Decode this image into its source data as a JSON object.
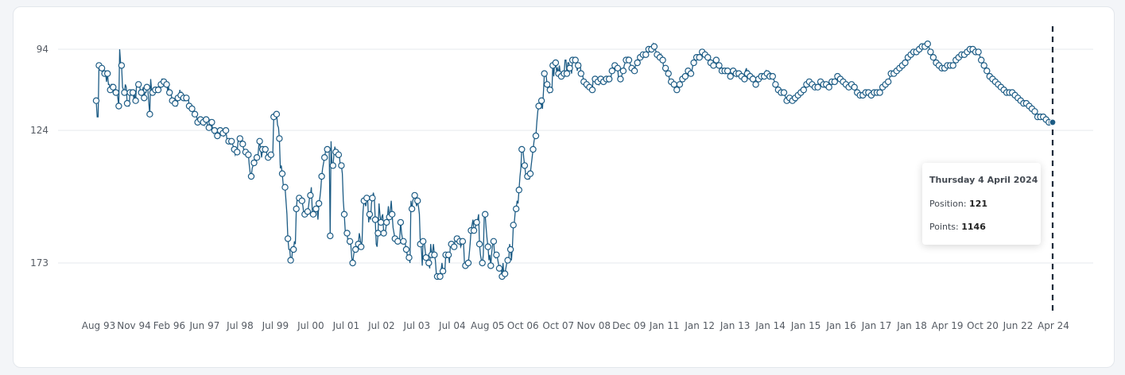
{
  "chart_data": {
    "type": "line",
    "x_labels": [
      "Aug 93",
      "Nov 94",
      "Feb 96",
      "Jun 97",
      "Jul 98",
      "Jul 99",
      "Jul 00",
      "Jul 01",
      "Jul 02",
      "Jul 03",
      "Jul 04",
      "Aug 05",
      "Oct 06",
      "Oct 07",
      "Nov 08",
      "Dec 09",
      "Jan 11",
      "Jan 12",
      "Jan 13",
      "Jan 14",
      "Jan 15",
      "Jan 16",
      "Jan 17",
      "Jan 18",
      "Apr 19",
      "Oct 20",
      "Jun 22",
      "Apr 24"
    ],
    "y_ticks": [
      94,
      124,
      173
    ],
    "y_axis": "reversed",
    "ylim": [
      84,
      190
    ],
    "grid": true,
    "series": [
      {
        "values": [
          113,
          119,
          119,
          100,
          100,
          100,
          101,
          102,
          102,
          103,
          103,
          106,
          103,
          107,
          107,
          109,
          107,
          107,
          108,
          108,
          108,
          110,
          109,
          112,
          115,
          94,
          99,
          100,
          108,
          109,
          110,
          107,
          108,
          114,
          115,
          115,
          110,
          111,
          111,
          110,
          112,
          111,
          113,
          107,
          107,
          107,
          106,
          110,
          110,
          110,
          108,
          112,
          110,
          110,
          108,
          109,
          114,
          118,
          105,
          109,
          110,
          110,
          110,
          109,
          109,
          109,
          109,
          109,
          109,
          107,
          105,
          105,
          106,
          106,
          107,
          107,
          109,
          108,
          110,
          111,
          111,
          113,
          114,
          114,
          114,
          115,
          115,
          112,
          113,
          109,
          111,
          110,
          111,
          112,
          113,
          113,
          112,
          112,
          112,
          115,
          116,
          115,
          116,
          117,
          117,
          118,
          118,
          119,
          121,
          120,
          120,
          120,
          119,
          122,
          121,
          122,
          120,
          120,
          121,
          123,
          123,
          120,
          121,
          121,
          124,
          125,
          124,
          125,
          125,
          126,
          126,
          126,
          124,
          125,
          125,
          125,
          126,
          125,
          124,
          127,
          127,
          128,
          128,
          129,
          128,
          129,
          130,
          131,
          133,
          132,
          132,
          128,
          128,
          127,
          128,
          129,
          129,
          131,
          131,
          132,
          132,
          132,
          133,
          137,
          140,
          141,
          138,
          137,
          136,
          136,
          136,
          134,
          134,
          130,
          128,
          131,
          134,
          131,
          132,
          132,
          131,
          131,
          134,
          134,
          133,
          133,
          133,
          133,
          132,
          119,
          119,
          119,
          118,
          122,
          123,
          127,
          138,
          137,
          140,
          144,
          145,
          145,
          150,
          155,
          164,
          168,
          168,
          172,
          172,
          168,
          168,
          165,
          166,
          153,
          149,
          149,
          149,
          149,
          150,
          150,
          152,
          155,
          155,
          154,
          154,
          154,
          152,
          149,
          148,
          145,
          154,
          155,
          153,
          154,
          153,
          153,
          157,
          151,
          149,
          146,
          141,
          138,
          136,
          134,
          132,
          132,
          131,
          131,
          132,
          163,
          128,
          137,
          137,
          133,
          130,
          132,
          133,
          133,
          133,
          134,
          138,
          137,
          140,
          150,
          155,
          161,
          163,
          162,
          165,
          166,
          165,
          166,
          171,
          173,
          170,
          168,
          168,
          168,
          168,
          166,
          162,
          164,
          167,
          165,
          154,
          150,
          151,
          152,
          149,
          150,
          158,
          155,
          157,
          151,
          149,
          147,
          149,
          157,
          166,
          167,
          162,
          151,
          155,
          158,
          156,
          155,
          162,
          161,
          161,
          158,
          156,
          152,
          156,
          154,
          150,
          155,
          160,
          162,
          164,
          165,
          164,
          165,
          164,
          164,
          158,
          162,
          164,
          165,
          165,
          166,
          168,
          170,
          171,
          171,
          173,
          150,
          153,
          150,
          149,
          148,
          150,
          152,
          150,
          152,
          155,
          166,
          167,
          174,
          165,
          164,
          168,
          171,
          172,
          173,
          173,
          175,
          166,
          170,
          169,
          166,
          170,
          172,
          177,
          178,
          178,
          178,
          178,
          176,
          173,
          176,
          176,
          177,
          170,
          171,
          171,
          170,
          173,
          166,
          166,
          166,
          168,
          167,
          164,
          165,
          164,
          166,
          163,
          165,
          167,
          166,
          165,
          166,
          173,
          174,
          174,
          174,
          173,
          170,
          166,
          161,
          159,
          157,
          161,
          161,
          159,
          158,
          157,
          155,
          166,
          170,
          172,
          173,
          170,
          155,
          155,
          160,
          164,
          167,
          172,
          170,
          174,
          169,
          166,
          165,
          170,
          171,
          170,
          171,
          173,
          175,
          174,
          175,
          178,
          173,
          178,
          177,
          175,
          173,
          172,
          173,
          166,
          168,
          172,
          167,
          159,
          158,
          154,
          153,
          150,
          151,
          146,
          141,
          138,
          131,
          130,
          134,
          137,
          140,
          141,
          141,
          142,
          142,
          140,
          137,
          134,
          131,
          128,
          126,
          126,
          121,
          117,
          115,
          114,
          116,
          113,
          116,
          110,
          103,
          104,
          104,
          107,
          109,
          110,
          109,
          109,
          110,
          100,
          104,
          99,
          99,
          102,
          101,
          103,
          100,
          103,
          104,
          104,
          103,
          103,
          98,
          98,
          103,
          99,
          99,
          101,
          101,
          103,
          98,
          98,
          98,
          98,
          98,
          102,
          100,
          100,
          99,
          103,
          103,
          104,
          106,
          107,
          108,
          107,
          107,
          108,
          108,
          108,
          108,
          109,
          105,
          105,
          105,
          105,
          106,
          106,
          107,
          106,
          105,
          105,
          105,
          106,
          106,
          105,
          105,
          105,
          106,
          105,
          104,
          104,
          102,
          101,
          100,
          100,
          101,
          101,
          101,
          105,
          105,
          105,
          104,
          103,
          102,
          100,
          99,
          98,
          98,
          97,
          98,
          99,
          100,
          101,
          101,
          102,
          102,
          100,
          99,
          99,
          98,
          98,
          97,
          96,
          96,
          96,
          96,
          96,
          96,
          95,
          94,
          94,
          94,
          94,
          94,
          93,
          92,
          93,
          94,
          95,
          96,
          97,
          96,
          97,
          96,
          98,
          98,
          101,
          102,
          101,
          101,
          103,
          103,
          105,
          106,
          106,
          107,
          107,
          107,
          109,
          109,
          109,
          108,
          107,
          107,
          107,
          106,
          105,
          104,
          104,
          104,
          103,
          102,
          102,
          102,
          102,
          103,
          102,
          100,
          99,
          98,
          98,
          97,
          96,
          96,
          97,
          97,
          96,
          95,
          96,
          96,
          96,
          96,
          96,
          97,
          98,
          99,
          99,
          100,
          99,
          100,
          100,
          98,
          98,
          99,
          100,
          100,
          101,
          101,
          102,
          102,
          102,
          102,
          103,
          103,
          102,
          103,
          104,
          104,
          104,
          104,
          102,
          102,
          102,
          103,
          104,
          103,
          103,
          103,
          103,
          104,
          105,
          105,
          105,
          102,
          101,
          103,
          102,
          103,
          104,
          104,
          104,
          105,
          104,
          105,
          107,
          106,
          106,
          105,
          103,
          104,
          104,
          104,
          104,
          104,
          103,
          102,
          103,
          103,
          103,
          104,
          103,
          104,
          104,
          105,
          106,
          107,
          108,
          108,
          109,
          109,
          110,
          110,
          110,
          110,
          110,
          111,
          112,
          113,
          113,
          112,
          112,
          113,
          113,
          113,
          113,
          113,
          112,
          113,
          112,
          111,
          110,
          110,
          110,
          109,
          109,
          109,
          109,
          108,
          107,
          107,
          106,
          106,
          106,
          107,
          107,
          108,
          108,
          108,
          108,
          108,
          108,
          108,
          107,
          106,
          107,
          106,
          107,
          107,
          108,
          107,
          107,
          107,
          108,
          107,
          106,
          106,
          106,
          106,
          106,
          105,
          104,
          104,
          104,
          105,
          105,
          105,
          106,
          106,
          107,
          107,
          107,
          108,
          108,
          108,
          108,
          108,
          107,
          107,
          107,
          108,
          109,
          109,
          110,
          110,
          111,
          111,
          111,
          111,
          111,
          111,
          110,
          110,
          110,
          110,
          110,
          110,
          110,
          111,
          111,
          111,
          110,
          110,
          110,
          110,
          111,
          111,
          110,
          109,
          109,
          108,
          107,
          107,
          107,
          106,
          106,
          106,
          105,
          104,
          103,
          103,
          103,
          103,
          102,
          102,
          102,
          101,
          101,
          101,
          101,
          100,
          100,
          99,
          99,
          99,
          98,
          98,
          97,
          97,
          97,
          96,
          96,
          96,
          95,
          95,
          95,
          95,
          95,
          95,
          94,
          94,
          94,
          93,
          93,
          93,
          93,
          93,
          93,
          92,
          93,
          94,
          95,
          96,
          96,
          97,
          98,
          99,
          99,
          99,
          100,
          100,
          100,
          100,
          101,
          101,
          101,
          101,
          101,
          100,
          100,
          100,
          100,
          100,
          100,
          100,
          100,
          99,
          99,
          98,
          98,
          98,
          97,
          97,
          96,
          96,
          96,
          96,
          96,
          95,
          95,
          95,
          95,
          95,
          94,
          94,
          94,
          94,
          94,
          95,
          95,
          95,
          95,
          95,
          96,
          97,
          98,
          99,
          100,
          100,
          101,
          101,
          102,
          103,
          103,
          104,
          104,
          104,
          105,
          105,
          106,
          106,
          106,
          107,
          107,
          108,
          108,
          108,
          108,
          109,
          109,
          109,
          110,
          110,
          110,
          110,
          110,
          110,
          110,
          110,
          110,
          110,
          111,
          111,
          112,
          112,
          112,
          112,
          113,
          113,
          114,
          114,
          114,
          114,
          114,
          114,
          115,
          115,
          115,
          115,
          116,
          116,
          117,
          117,
          118,
          118,
          119,
          119,
          119,
          119,
          119,
          119,
          119,
          119,
          120,
          120,
          121,
          121,
          121,
          121,
          121,
          121,
          121
        ],
        "color": "#1d5c85"
      }
    ],
    "highlight": {
      "date": "Thursday 4 April 2024",
      "position": 121,
      "points": 1146
    }
  },
  "tooltip": {
    "title": "Thursday 4 April 2024",
    "position_label": "Position: ",
    "position_value": "121",
    "points_label": "Points: ",
    "points_value": "1146"
  }
}
